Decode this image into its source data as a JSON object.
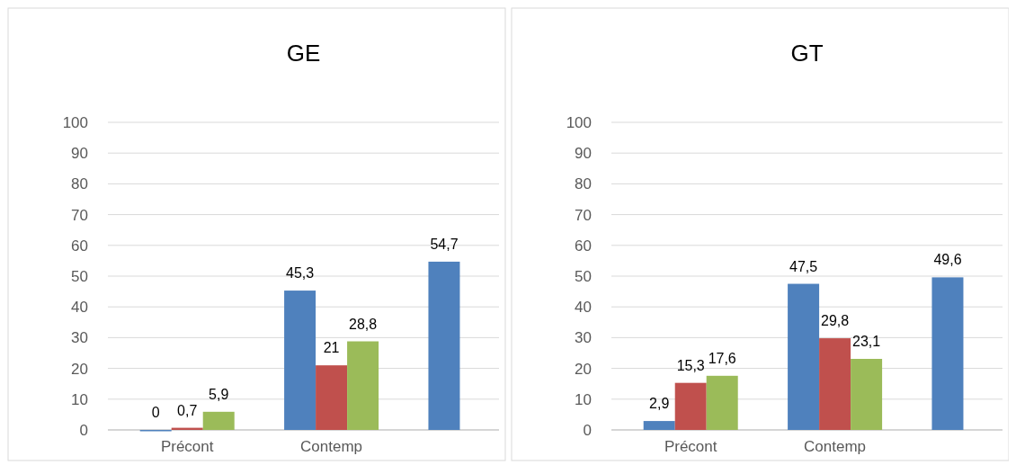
{
  "chart_data": [
    {
      "type": "bar",
      "title": "GE",
      "categories": [
        "Précont",
        "Contemp",
        null
      ],
      "series": [
        {
          "color": "#4f81bd",
          "values": [
            0,
            45.3,
            54.7
          ],
          "value_labels": [
            "0",
            "45,3",
            "54,7"
          ]
        },
        {
          "color": "#c0504d",
          "values": [
            0.7,
            21,
            null
          ],
          "value_labels": [
            "0,7",
            "21",
            null
          ]
        },
        {
          "color": "#9bbb59",
          "values": [
            5.9,
            28.8,
            null
          ],
          "value_labels": [
            "5,9",
            "28,8",
            null
          ]
        }
      ],
      "ylim": [
        0,
        100
      ],
      "yticks": [
        0,
        10,
        20,
        30,
        40,
        50,
        60,
        70,
        80,
        90,
        100
      ],
      "grid": "y"
    },
    {
      "type": "bar",
      "title": "GT",
      "categories": [
        "Précont",
        "Contemp",
        null
      ],
      "series": [
        {
          "color": "#4f81bd",
          "values": [
            2.9,
            47.5,
            49.6
          ],
          "value_labels": [
            "2,9",
            "47,5",
            "49,6"
          ]
        },
        {
          "color": "#c0504d",
          "values": [
            15.3,
            29.8,
            null
          ],
          "value_labels": [
            "15,3",
            "29,8",
            null
          ]
        },
        {
          "color": "#9bbb59",
          "values": [
            17.6,
            23.1,
            null
          ],
          "value_labels": [
            "17,6",
            "23,1",
            null
          ]
        }
      ],
      "ylim": [
        0,
        100
      ],
      "yticks": [
        0,
        10,
        20,
        30,
        40,
        50,
        60,
        70,
        80,
        90,
        100
      ],
      "grid": "y"
    }
  ]
}
